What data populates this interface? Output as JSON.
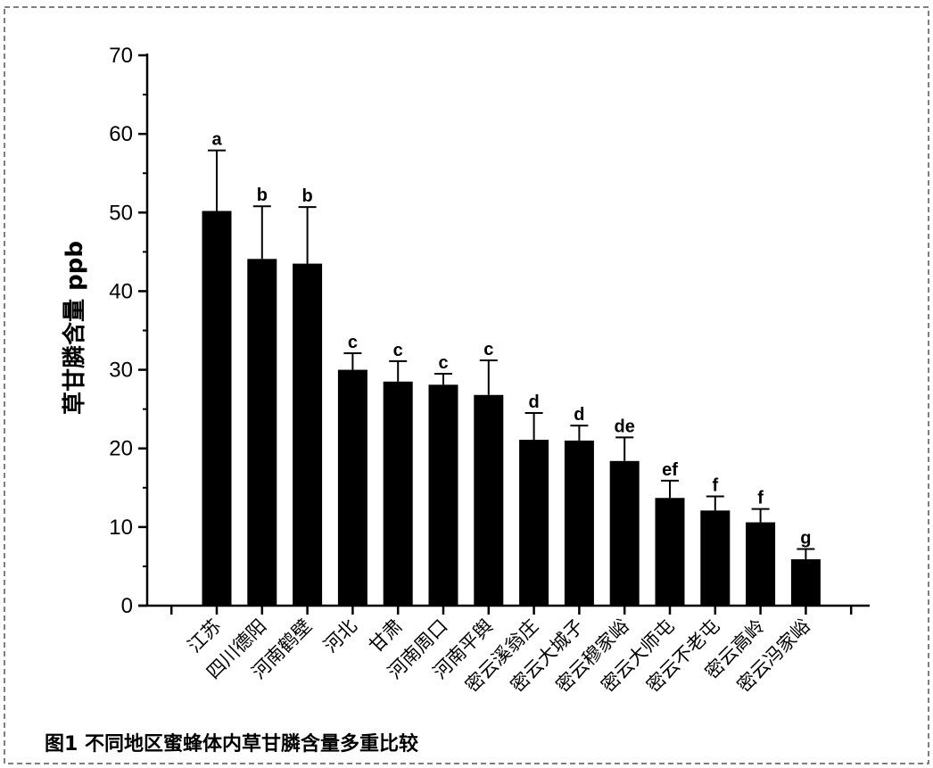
{
  "caption": "图1 不同地区蜜蜂体内草甘膦含量多重比较",
  "chart_data": {
    "type": "bar",
    "title": "",
    "xlabel": "",
    "ylabel": "草甘膦含量 ppb",
    "ylim": [
      0,
      70
    ],
    "yticks": [
      0,
      10,
      20,
      30,
      40,
      50,
      60,
      70
    ],
    "grid": false,
    "legend": "none",
    "bar_color": "#000000",
    "categories": [
      "江苏",
      "四川德阳",
      "河南鹤壁",
      "河北",
      "甘肃",
      "河南周口",
      "河南平舆",
      "密云溪翁庄",
      "密云大城子",
      "密云穆家峪",
      "密云大师屯",
      "密云不老屯",
      "密云高岭",
      "密云冯家峪"
    ],
    "values": [
      50.2,
      44.1,
      43.5,
      30.0,
      28.5,
      28.1,
      26.8,
      21.1,
      21.0,
      18.4,
      13.7,
      12.1,
      10.6,
      5.9
    ],
    "errors": [
      7.7,
      6.7,
      7.2,
      2.1,
      2.6,
      1.4,
      4.4,
      3.4,
      1.9,
      3.0,
      2.2,
      1.8,
      1.7,
      1.3
    ],
    "significance_labels": [
      "a",
      "b",
      "b",
      "c",
      "c",
      "c",
      "c",
      "d",
      "d",
      "de",
      "ef",
      "f",
      "f",
      "g"
    ]
  }
}
